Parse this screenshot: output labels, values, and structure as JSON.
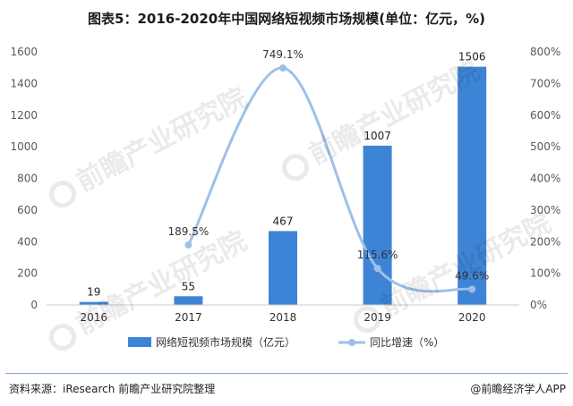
{
  "title": "图表5：2016-2020年中国网络短视频市场规模(单位：亿元，%)",
  "source": "资料来源：iResearch 前瞻产业研究院整理",
  "brand": "@前瞻经济学人APP",
  "watermark": "前瞻产业研究院",
  "colors": {
    "bar": "#3e84d6",
    "line": "#9ec0e8",
    "axis": "#cccccc",
    "text": "#595959"
  },
  "chart_data": {
    "type": "bar",
    "categories": [
      "2016",
      "2017",
      "2018",
      "2019",
      "2020"
    ],
    "series": [
      {
        "name": "网络短视频市场规模（亿元）",
        "type": "bar",
        "axis": "left",
        "values": [
          19,
          55,
          467,
          1007,
          1506
        ],
        "labels": [
          "19",
          "55",
          "467",
          "1007",
          "1506"
        ]
      },
      {
        "name": "同比增速（%）",
        "type": "line",
        "axis": "right",
        "smooth": true,
        "values": [
          null,
          189.5,
          749.1,
          115.6,
          49.6
        ],
        "labels": [
          "",
          "189.5%",
          "749.1%",
          "115.6%",
          "49.6%"
        ]
      }
    ],
    "left_axis": {
      "min": 0,
      "max": 1600,
      "ticks": [
        0,
        200,
        400,
        600,
        800,
        1000,
        1200,
        1400,
        1600
      ]
    },
    "right_axis": {
      "min": 0,
      "max": 800,
      "ticks": [
        0,
        100,
        200,
        300,
        400,
        500,
        600,
        700,
        800
      ],
      "tick_labels": [
        "0%",
        "100%",
        "200%",
        "300%",
        "400%",
        "500%",
        "600%",
        "700%",
        "800%"
      ]
    },
    "grid": false,
    "legend_position": "bottom"
  }
}
